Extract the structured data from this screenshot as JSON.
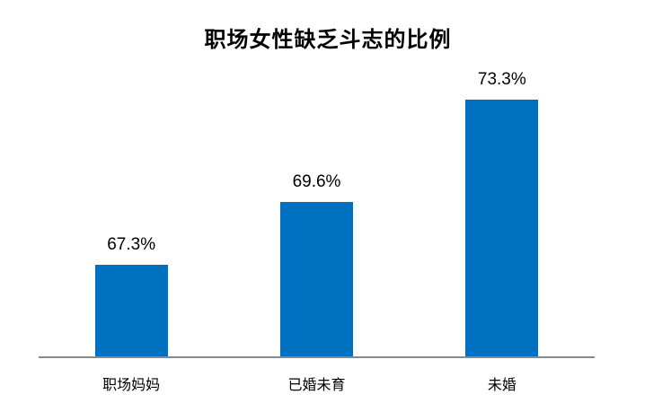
{
  "chart_data": {
    "type": "bar",
    "title": "职场女性缺乏斗志的比例",
    "categories": [
      "职场妈妈",
      "已婚未育",
      "未婚"
    ],
    "values": [
      67.3,
      69.6,
      73.3
    ],
    "value_labels": [
      "67.3%",
      "69.6%",
      "73.3%"
    ],
    "xlabel": "",
    "ylabel": "",
    "ylim": [
      64,
      74
    ],
    "y_axis_visible": false,
    "grid": false,
    "legend_position": "none",
    "bar_color": "#0070C0",
    "axis_line_color": "#898989",
    "text_color": "#000000",
    "background_color": "#ffffff"
  }
}
